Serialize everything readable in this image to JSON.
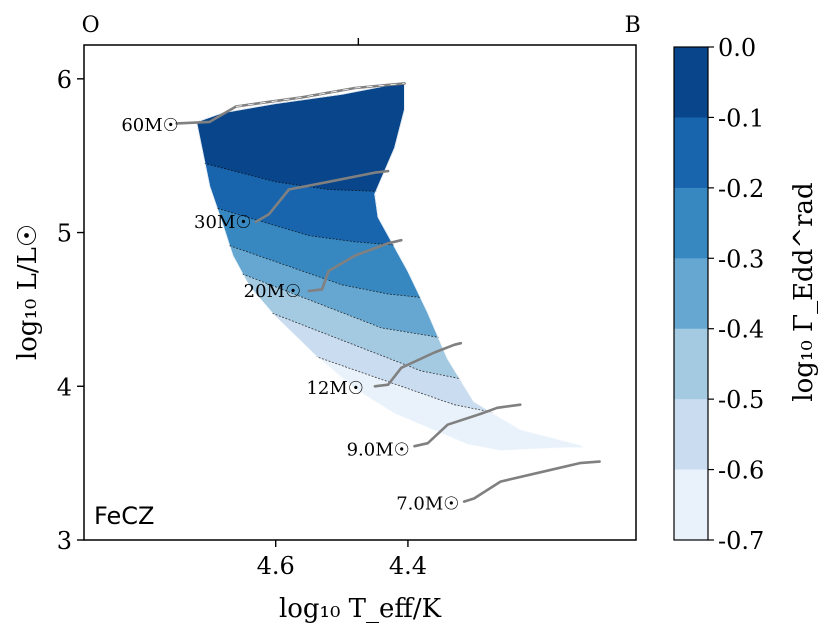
{
  "chart_data": {
    "type": "heatmap",
    "panel_label": "FeCZ",
    "xlabel": "log₁₀ T_eff/K",
    "ylabel": "log₁₀ L/L☉",
    "colorbar_label": "log₁₀ Γ_Edd^rad",
    "xlim": [
      4.89,
      4.055
    ],
    "ylim": [
      3.0,
      6.22
    ],
    "xticks": [
      4.6,
      4.4
    ],
    "xtick_labels": [
      "4.6",
      "4.4"
    ],
    "yticks": [
      3,
      4,
      5,
      6
    ],
    "ytick_labels": [
      "3",
      "4",
      "5",
      "6"
    ],
    "top_labels": [
      {
        "text": "O",
        "x": 4.88
      },
      {
        "text": "B",
        "x": 4.06
      }
    ],
    "top_tick": 4.475,
    "colorbar_ticks": [
      "0.0",
      "-0.1",
      "-0.2",
      "-0.3",
      "-0.4",
      "-0.5",
      "-0.6",
      "-0.7"
    ],
    "colorbar_levels": [
      {
        "range": [
          -0.1,
          0.0
        ],
        "color": "#08458a"
      },
      {
        "range": [
          -0.2,
          -0.1
        ],
        "color": "#1864ad"
      },
      {
        "range": [
          -0.3,
          -0.2
        ],
        "color": "#3787c0"
      },
      {
        "range": [
          -0.4,
          -0.3
        ],
        "color": "#65a7d1"
      },
      {
        "range": [
          -0.5,
          -0.4
        ],
        "color": "#a4cae2"
      },
      {
        "range": [
          -0.6,
          -0.5
        ],
        "color": "#cadcf0"
      },
      {
        "range": [
          -0.7,
          -0.6
        ],
        "color": "#e9f2fb"
      }
    ],
    "region_boundary": [
      [
        4.72,
        5.72
      ],
      [
        4.68,
        5.78
      ],
      [
        4.6,
        5.84
      ],
      [
        4.5,
        5.9
      ],
      [
        4.405,
        5.98
      ],
      [
        4.405,
        5.8
      ],
      [
        4.42,
        5.55
      ],
      [
        4.45,
        5.25
      ],
      [
        4.445,
        5.1
      ],
      [
        4.4,
        4.75
      ],
      [
        4.37,
        4.48
      ],
      [
        4.34,
        4.18
      ],
      [
        4.3,
        3.9
      ],
      [
        4.23,
        3.72
      ],
      [
        4.14,
        3.62
      ],
      [
        4.13,
        3.6
      ],
      [
        4.16,
        3.6
      ],
      [
        4.26,
        3.58
      ],
      [
        4.31,
        3.62
      ],
      [
        4.42,
        3.82
      ],
      [
        4.48,
        3.98
      ],
      [
        4.54,
        4.2
      ],
      [
        4.6,
        4.45
      ],
      [
        4.64,
        4.65
      ],
      [
        4.665,
        4.85
      ],
      [
        4.68,
        5.05
      ],
      [
        4.7,
        5.3
      ],
      [
        4.72,
        5.72
      ]
    ],
    "contour_lines": [
      {
        "level": -0.1,
        "points": [
          [
            4.69,
            5.43
          ],
          [
            4.6,
            5.33
          ],
          [
            4.52,
            5.28
          ],
          [
            4.46,
            5.27
          ]
        ]
      },
      {
        "level": -0.2,
        "points": [
          [
            4.62,
            5.07
          ],
          [
            4.55,
            4.98
          ],
          [
            4.48,
            4.94
          ],
          [
            4.425,
            4.92
          ]
        ]
      },
      {
        "level": -0.3,
        "points": [
          [
            4.56,
            4.75
          ],
          [
            4.5,
            4.66
          ],
          [
            4.43,
            4.6
          ],
          [
            4.385,
            4.58
          ]
        ]
      },
      {
        "level": -0.4,
        "points": [
          [
            4.5,
            4.48
          ],
          [
            4.44,
            4.38
          ],
          [
            4.37,
            4.33
          ],
          [
            4.33,
            4.3
          ]
        ]
      },
      {
        "level": -0.5,
        "points": [
          [
            4.44,
            4.2
          ],
          [
            4.38,
            4.1
          ],
          [
            4.31,
            4.04
          ],
          [
            4.26,
            4.03
          ]
        ]
      },
      {
        "level": -0.6,
        "points": [
          [
            4.39,
            3.97
          ],
          [
            4.33,
            3.88
          ],
          [
            4.26,
            3.82
          ],
          [
            4.2,
            3.8
          ]
        ]
      }
    ],
    "tracks": [
      {
        "mass": "60M☉",
        "points": [
          [
            4.75,
            5.71
          ],
          [
            4.7,
            5.72
          ],
          [
            4.66,
            5.82
          ],
          [
            4.56,
            5.88
          ],
          [
            4.48,
            5.94
          ],
          [
            4.405,
            5.97
          ]
        ]
      },
      {
        "mass": "30M☉",
        "points": [
          [
            4.63,
            5.07
          ],
          [
            4.61,
            5.12
          ],
          [
            4.58,
            5.28
          ],
          [
            4.52,
            5.33
          ],
          [
            4.45,
            5.39
          ],
          [
            4.43,
            5.4
          ]
        ]
      },
      {
        "mass": "20M☉",
        "points": [
          [
            4.55,
            4.62
          ],
          [
            4.53,
            4.63
          ],
          [
            4.52,
            4.75
          ],
          [
            4.48,
            4.85
          ],
          [
            4.43,
            4.93
          ],
          [
            4.41,
            4.95
          ]
        ]
      },
      {
        "mass": "12M☉",
        "points": [
          [
            4.45,
            4.0
          ],
          [
            4.43,
            4.01
          ],
          [
            4.41,
            4.12
          ],
          [
            4.36,
            4.22
          ],
          [
            4.33,
            4.27
          ],
          [
            4.32,
            4.28
          ]
        ]
      },
      {
        "mass": "9.0M☉",
        "points": [
          [
            4.39,
            3.61
          ],
          [
            4.37,
            3.63
          ],
          [
            4.34,
            3.75
          ],
          [
            4.29,
            3.82
          ],
          [
            4.265,
            3.86
          ],
          [
            4.23,
            3.88
          ]
        ]
      },
      {
        "mass": "7.0M☉",
        "points": [
          [
            4.315,
            3.25
          ],
          [
            4.3,
            3.27
          ],
          [
            4.26,
            3.38
          ],
          [
            4.19,
            3.45
          ],
          [
            4.14,
            3.5
          ],
          [
            4.11,
            3.51
          ]
        ]
      }
    ],
    "track_labels": [
      {
        "text": "60M☉",
        "x": 4.79,
        "y": 5.66
      },
      {
        "text": "30M☉",
        "x": 4.68,
        "y": 5.03
      },
      {
        "text": "20M☉",
        "x": 4.605,
        "y": 4.58
      },
      {
        "text": "12M☉",
        "x": 4.51,
        "y": 3.95
      },
      {
        "text": "9.0M☉",
        "x": 4.445,
        "y": 3.55
      },
      {
        "text": "7.0M☉",
        "x": 4.37,
        "y": 3.2
      }
    ]
  }
}
